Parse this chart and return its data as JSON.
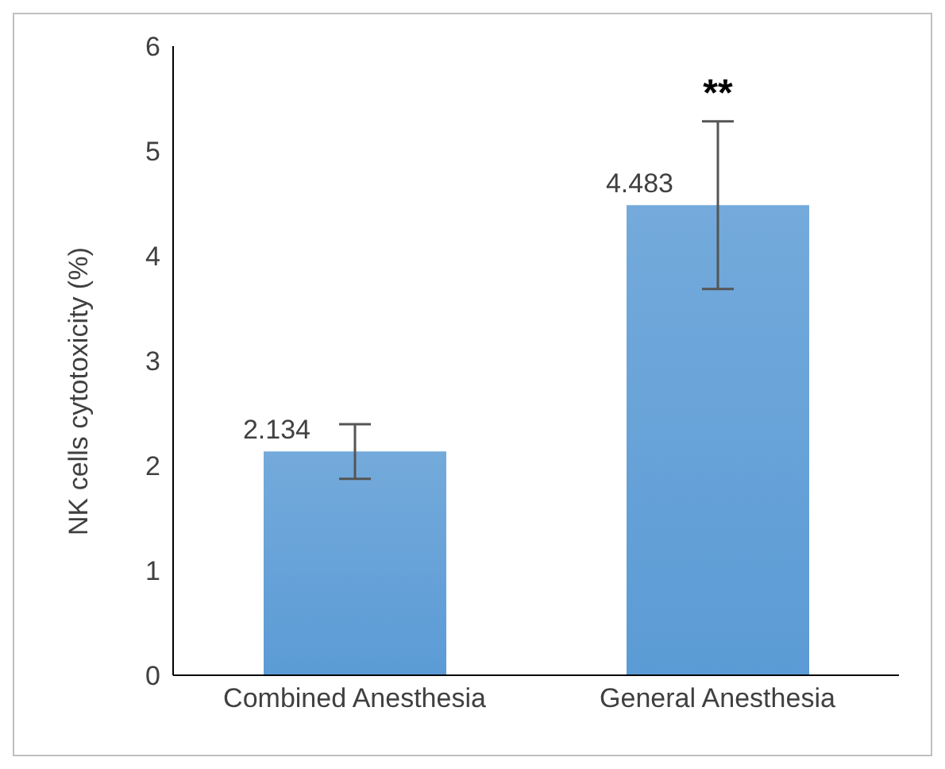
{
  "chart_data": {
    "type": "bar",
    "ylabel": "NK cells cytotoxicity (%)",
    "categories": [
      "Combined Anesthesia",
      "General Anesthesia"
    ],
    "values": [
      2.134,
      4.483
    ],
    "color": "#5b9bd5",
    "errors": [
      0.26,
      0.8
    ],
    "data_labels": true,
    "ylim": [
      0,
      6
    ],
    "yticks": [
      0,
      1,
      2,
      3,
      4,
      5,
      6
    ],
    "grid": false,
    "annotations": [
      "**"
    ]
  }
}
